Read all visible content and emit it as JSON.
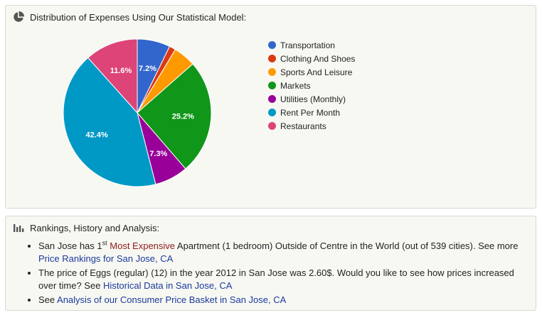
{
  "chart_section": {
    "title": "Distribution of Expenses Using Our Statistical Model:"
  },
  "chart_data": {
    "type": "pie",
    "title": "Distribution of Expenses Using Our Statistical Model:",
    "slices": [
      {
        "label": "Transportation",
        "value": 7.2,
        "color": "#3366cc",
        "show_label": true
      },
      {
        "label": "Clothing And Shoes",
        "value": 1.4,
        "color": "#dc3912",
        "show_label": false
      },
      {
        "label": "Sports And Leisure",
        "value": 4.9,
        "color": "#ff9900",
        "show_label": false
      },
      {
        "label": "Markets",
        "value": 25.2,
        "color": "#109618",
        "show_label": true
      },
      {
        "label": "Utilities (Monthly)",
        "value": 7.3,
        "color": "#990099",
        "show_label": true
      },
      {
        "label": "Rent Per Month",
        "value": 42.4,
        "color": "#0099c6",
        "show_label": true
      },
      {
        "label": "Restaurants",
        "value": 11.6,
        "color": "#dd4477",
        "show_label": true
      }
    ],
    "label_format": "%",
    "legend_position": "right"
  },
  "rankings": {
    "title": "Rankings, History and Analysis:",
    "item1": {
      "prefix": "San Jose has 1",
      "sup": "st",
      "link": "Most Expensive",
      "middle": " Apartment (1 bedroom) Outside of Centre in the World (out of 539 cities). See more ",
      "link2": "Price Rankings for San Jose, CA"
    },
    "item2": {
      "text": "The price of Eggs (regular) (12) in the year 2012 in San Jose was 2.60$. Would you like to see how prices increased over time? See ",
      "link": "Historical Data in San Jose, CA"
    },
    "item3": {
      "prefix": "See ",
      "link": "Analysis of our Consumer Price Basket in San Jose, CA"
    }
  },
  "icons": {
    "chart_header": "pie-chart-icon",
    "rankings_header": "bar-chart-icon"
  }
}
